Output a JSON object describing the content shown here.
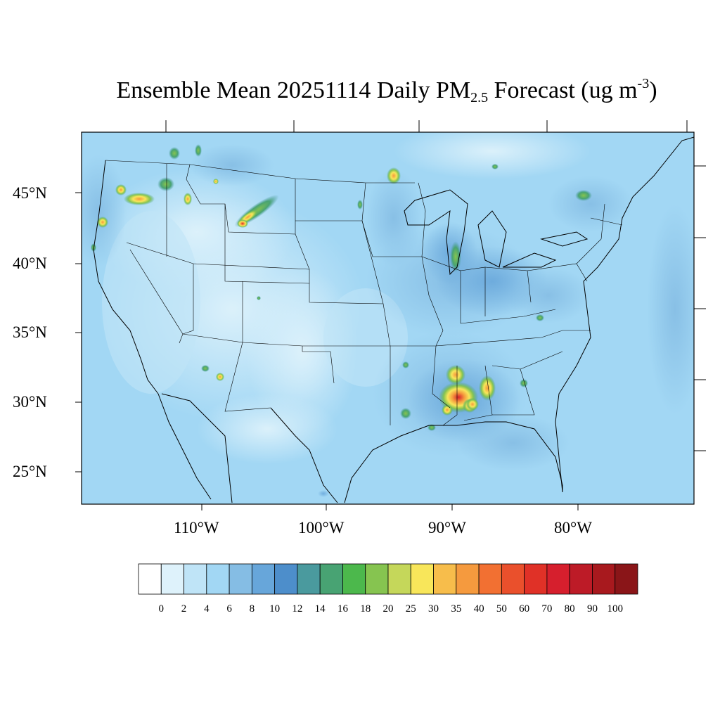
{
  "title": {
    "prefix": "Ensemble Mean 20251114 Daily PM",
    "subscript": "2.5",
    "middle": " Forecast (ug m",
    "superscript": "-3",
    "suffix": ")"
  },
  "latitude_labels": [
    "45°N",
    "40°N",
    "35°N",
    "30°N",
    "25°N"
  ],
  "longitude_labels": [
    "110°W",
    "100°W",
    "90°W",
    "80°W"
  ],
  "colorbar": {
    "labels": [
      "0",
      "2",
      "4",
      "6",
      "8",
      "10",
      "12",
      "14",
      "16",
      "18",
      "20",
      "25",
      "30",
      "35",
      "40",
      "50",
      "60",
      "70",
      "80",
      "90",
      "100"
    ],
    "colors": [
      "#ffffff",
      "#def2fb",
      "#bfe4f7",
      "#a2d7f4",
      "#85bde4",
      "#67a6da",
      "#4d8ecb",
      "#4a9a9e",
      "#48a373",
      "#4cb84c",
      "#86c450",
      "#c5d75a",
      "#f8e65a",
      "#f7bd4b",
      "#f59a3e",
      "#f27032",
      "#ea502c",
      "#e03127",
      "#d61f2d",
      "#bd1b27",
      "#a8191e",
      "#8a1518"
    ]
  },
  "hotspots": [
    {
      "name": "south-mississippi",
      "lat": 30.6,
      "lon": -89.8,
      "peak": 60
    },
    {
      "name": "central-mississippi",
      "lat": 32.3,
      "lon": -89.9,
      "peak": 35
    },
    {
      "name": "alabama",
      "lat": 31.2,
      "lon": -87.3,
      "peak": 30
    },
    {
      "name": "central-wyoming",
      "lat": 43.1,
      "lon": -107.3,
      "peak": 70
    },
    {
      "name": "northern-idaho",
      "lat": 44.6,
      "lon": -114.8,
      "peak": 30
    },
    {
      "name": "northern-minnesota",
      "lat": 46.2,
      "lon": -94.3,
      "peak": 30
    }
  ]
}
